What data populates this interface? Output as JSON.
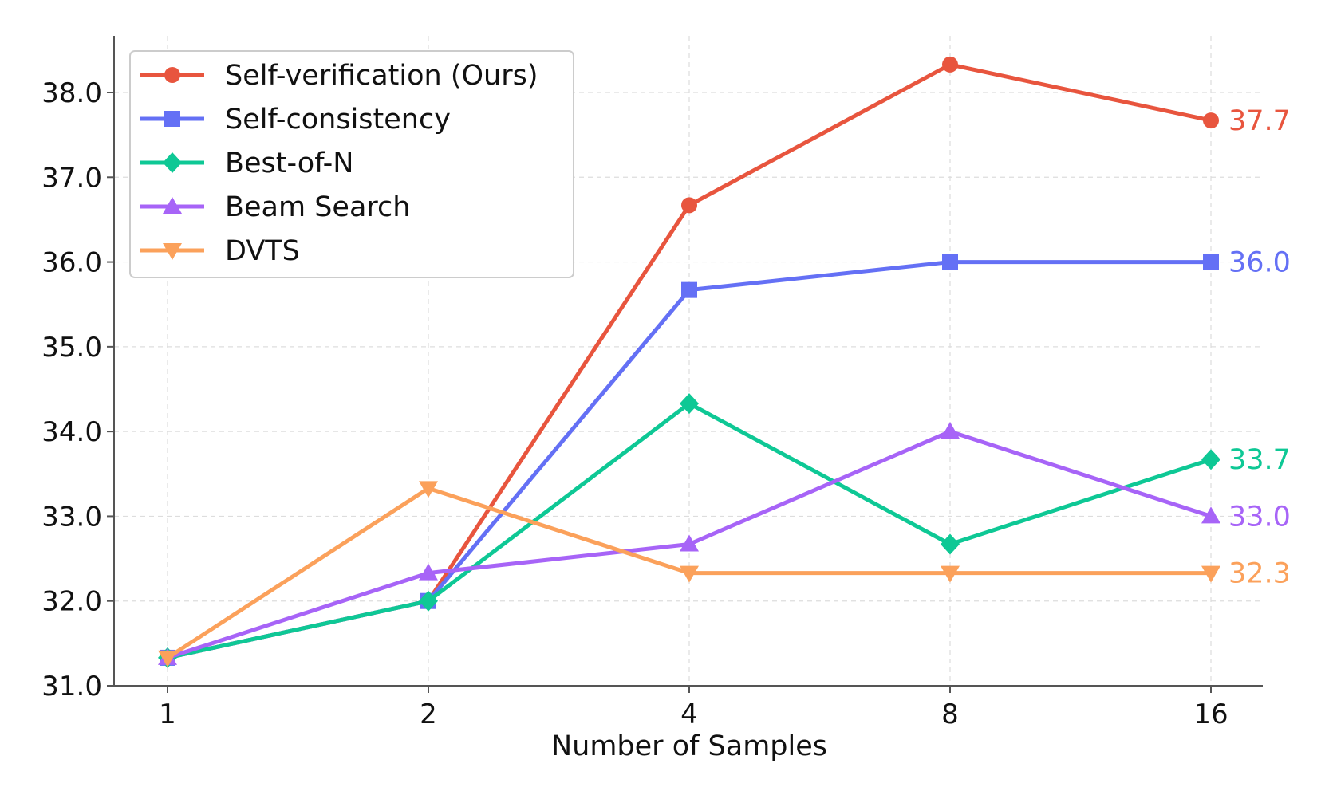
{
  "chart_data": {
    "type": "line",
    "title": "",
    "xlabel": "Number of Samples",
    "ylabel": "",
    "categories": [
      "1",
      "2",
      "4",
      "8",
      "16"
    ],
    "ylim": [
      31.0,
      38.7
    ],
    "yticks": [
      31.0,
      32.0,
      33.0,
      34.0,
      35.0,
      36.0,
      37.0,
      38.0
    ],
    "ytick_labels": [
      "31.0",
      "32.0",
      "33.0",
      "34.0",
      "35.0",
      "36.0",
      "37.0",
      "38.0"
    ],
    "grid": true,
    "legend_position": "top-left",
    "series": [
      {
        "name": "Self-verification (Ours)",
        "color": "#e8553e",
        "marker": "circle",
        "values": [
          31.33,
          32.0,
          36.67,
          38.33,
          37.67
        ],
        "end_label": "37.7"
      },
      {
        "name": "Self-consistency",
        "color": "#6470f5",
        "marker": "square",
        "values": [
          31.33,
          32.0,
          35.67,
          36.0,
          36.0
        ],
        "end_label": "36.0"
      },
      {
        "name": "Best-of-N",
        "color": "#0ec895",
        "marker": "diamond",
        "values": [
          31.33,
          32.0,
          34.33,
          32.67,
          33.67
        ],
        "end_label": "33.7"
      },
      {
        "name": "Beam Search",
        "color": "#a764f7",
        "marker": "triangle-up",
        "values": [
          31.33,
          32.33,
          32.67,
          34.0,
          33.0
        ],
        "end_label": "33.0"
      },
      {
        "name": "DVTS",
        "color": "#fba15b",
        "marker": "triangle-down",
        "values": [
          31.33,
          33.33,
          32.33,
          32.33,
          32.33
        ],
        "end_label": "32.3"
      }
    ]
  }
}
